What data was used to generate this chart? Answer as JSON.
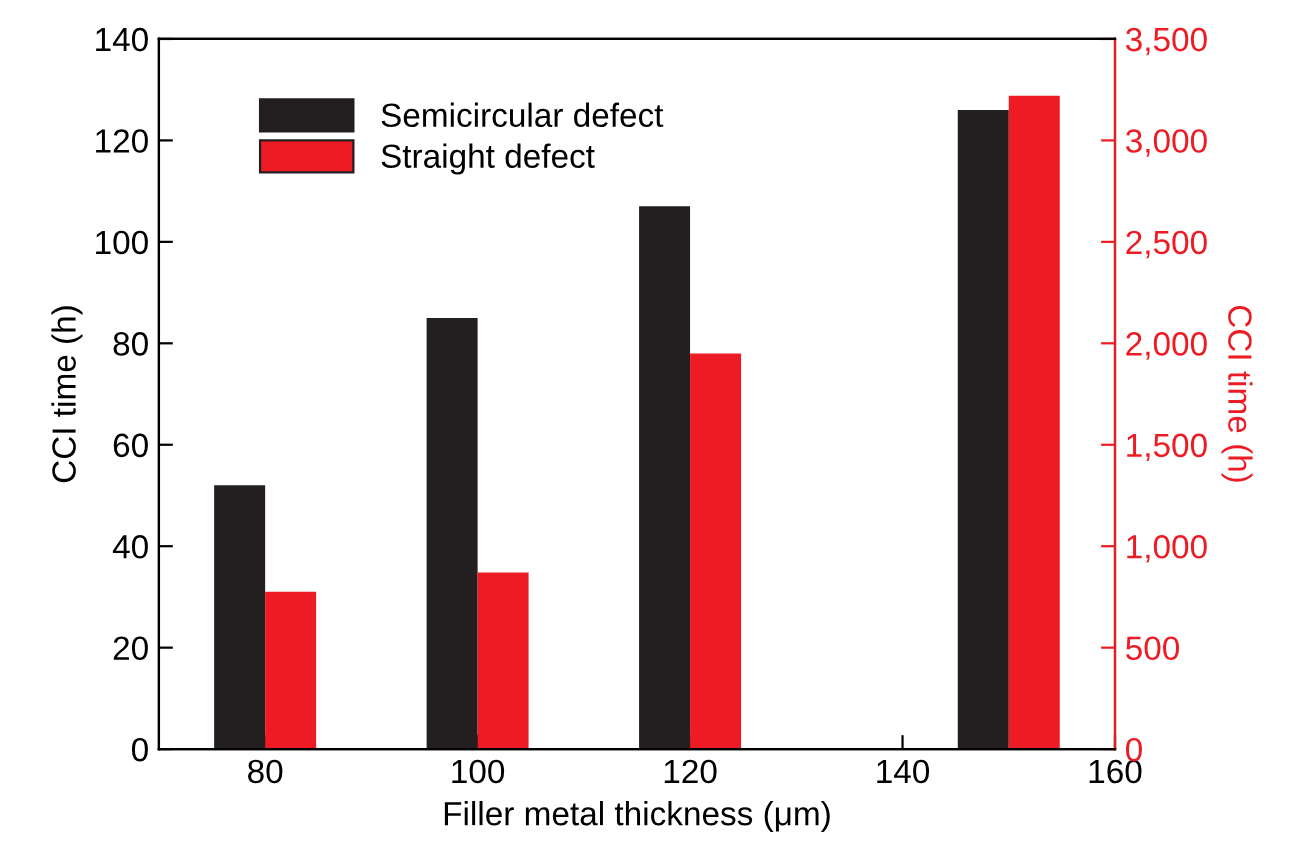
{
  "chart_data": {
    "type": "bar",
    "xlabel": "Filler metal thickness (μm)",
    "ylabel": "CCI time (h)",
    "y2label": "CCI time (h)",
    "x": [
      80,
      100,
      120,
      150
    ],
    "series": [
      {
        "name": "Semicircular defect",
        "color": "#231f20",
        "values": [
          52,
          85,
          107,
          126
        ]
      },
      {
        "name": "Straight defect",
        "color": "#ed1c24",
        "values": [
          775,
          870,
          1950,
          3220
        ],
        "axis": "y2"
      }
    ],
    "xlim": [
      70,
      160
    ],
    "xticks": [
      80,
      100,
      120,
      140,
      160
    ],
    "ylim": [
      0,
      140
    ],
    "yticks": [
      0,
      20,
      40,
      60,
      80,
      100,
      120,
      140
    ],
    "y2lim": [
      0,
      3500
    ],
    "y2ticks": [
      {
        "value": 0,
        "label": "0"
      },
      {
        "value": 500,
        "label": "500"
      },
      {
        "value": 1000,
        "label": "1,000"
      },
      {
        "value": 1500,
        "label": "1,500"
      },
      {
        "value": 2000,
        "label": "2,000"
      },
      {
        "value": 2500,
        "label": "2,500"
      },
      {
        "value": 3000,
        "label": "3,000"
      },
      {
        "value": 3500,
        "label": "3,500"
      }
    ],
    "grid": false,
    "legend": "top left"
  }
}
